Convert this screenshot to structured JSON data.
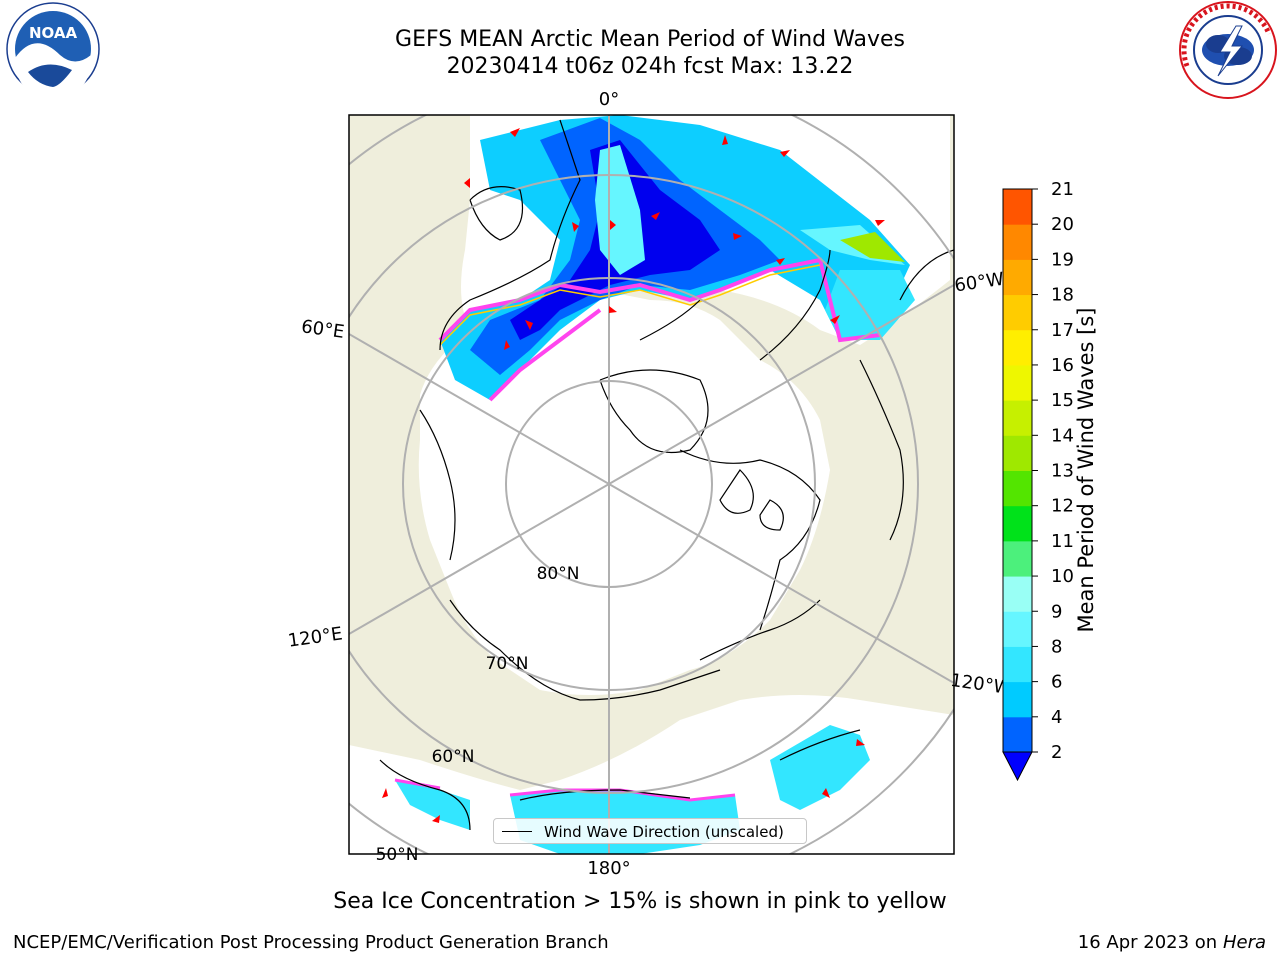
{
  "title_line1": "GEFS MEAN Arctic Mean Period of Wind Waves",
  "title_line2": "20230414 t06z 024h fcst   Max: 13.22",
  "longitude_labels": {
    "top": "0°",
    "left_upper": "60°E",
    "left_lower": "120°E",
    "right_upper": "60°W",
    "right_lower": "120°W",
    "bottom": "180°"
  },
  "latitude_labels": {
    "lat80": "80°N",
    "lat70": "70°N",
    "lat60": "60°N",
    "lat50": "50°N"
  },
  "colorbar": {
    "label": "Mean Period of Wind Waves [s]",
    "ticks": [
      "2",
      "4",
      "6",
      "8",
      "9",
      "10",
      "11",
      "12",
      "13",
      "14",
      "15",
      "16",
      "17",
      "18",
      "19",
      "20",
      "21"
    ],
    "colors": [
      "#0064ff",
      "#00cbff",
      "#33e6ff",
      "#66f6ff",
      "#99fff5",
      "#4cf07c",
      "#00e21a",
      "#53e500",
      "#9fe800",
      "#c6f000",
      "#eef700",
      "#ffee00",
      "#ffcc00",
      "#ffaa00",
      "#ff8800",
      "#ff5500",
      "#ff2200",
      "#ff0000"
    ],
    "under_color": "#0000ff"
  },
  "legend_text": "Wind Wave Direction (unscaled)",
  "caption": "Sea Ice Concentration > 15% is shown in pink to yellow",
  "footer_left": "NCEP/EMC/Verification Post Processing Product Generation Branch",
  "footer_right_date": "16 Apr 2023 on",
  "footer_right_host": "Hera",
  "logos": {
    "left_text": "NOAA",
    "right_ring_text": "NATIONAL WEATHER SERVICE"
  },
  "colors": {
    "land": "#efeedc",
    "ocean_ice": "#ffffff",
    "graticule": "#b0b0b0",
    "arrow": "#ff0000",
    "ice_edge": "#ff44ee"
  }
}
